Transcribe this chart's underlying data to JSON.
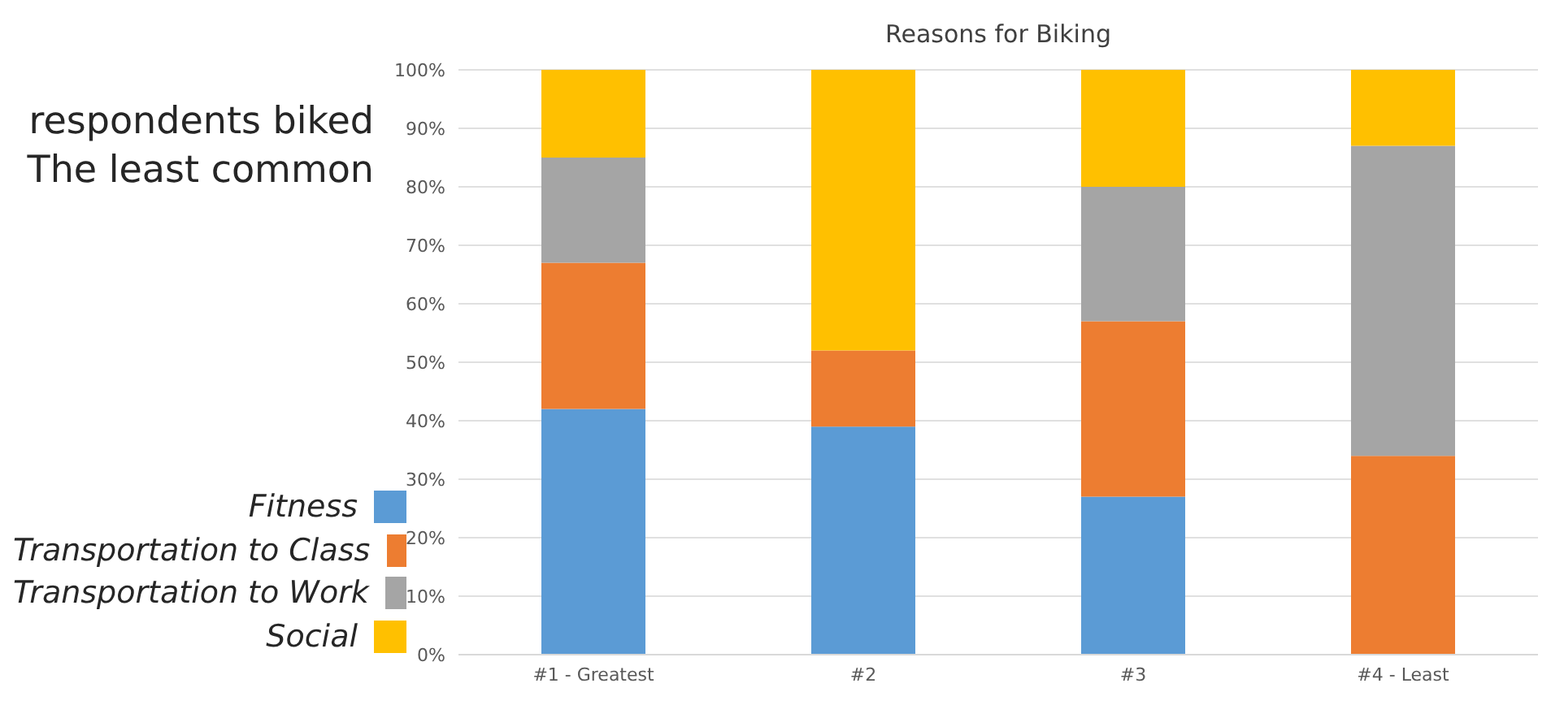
{
  "chart_data": {
    "type": "bar",
    "title": "Reasons for Biking",
    "stacked": true,
    "annotations": [
      "respondents biked",
      "The least common"
    ],
    "categories": [
      "#1 - Greatest",
      "#2",
      "#3",
      "#4 - Least"
    ],
    "series": [
      {
        "name": "Fitness",
        "color": "#5b9bd5",
        "values": [
          42,
          39,
          27,
          0
        ]
      },
      {
        "name": "Transportation to Class",
        "color": "#ed7d31",
        "values": [
          25,
          13,
          30,
          34
        ]
      },
      {
        "name": "Transportation to Work",
        "color": "#a5a5a5",
        "values": [
          18,
          0,
          23,
          53
        ]
      },
      {
        "name": "Social",
        "color": "#ffc000",
        "values": [
          15,
          48,
          20,
          13
        ]
      }
    ],
    "ylim": [
      0,
      100
    ],
    "yticks": [
      {
        "value": 0,
        "label": "0%"
      },
      {
        "value": 10,
        "label": "10%"
      },
      {
        "value": 20,
        "label": "20%"
      },
      {
        "value": 30,
        "label": "30%"
      },
      {
        "value": 40,
        "label": "40%"
      },
      {
        "value": 50,
        "label": "50%"
      },
      {
        "value": 60,
        "label": "60%"
      },
      {
        "value": 70,
        "label": "70%"
      },
      {
        "value": 80,
        "label": "80%"
      },
      {
        "value": 90,
        "label": "90%"
      },
      {
        "value": 100,
        "label": "100%"
      }
    ],
    "grid": "y",
    "legend": "left"
  }
}
